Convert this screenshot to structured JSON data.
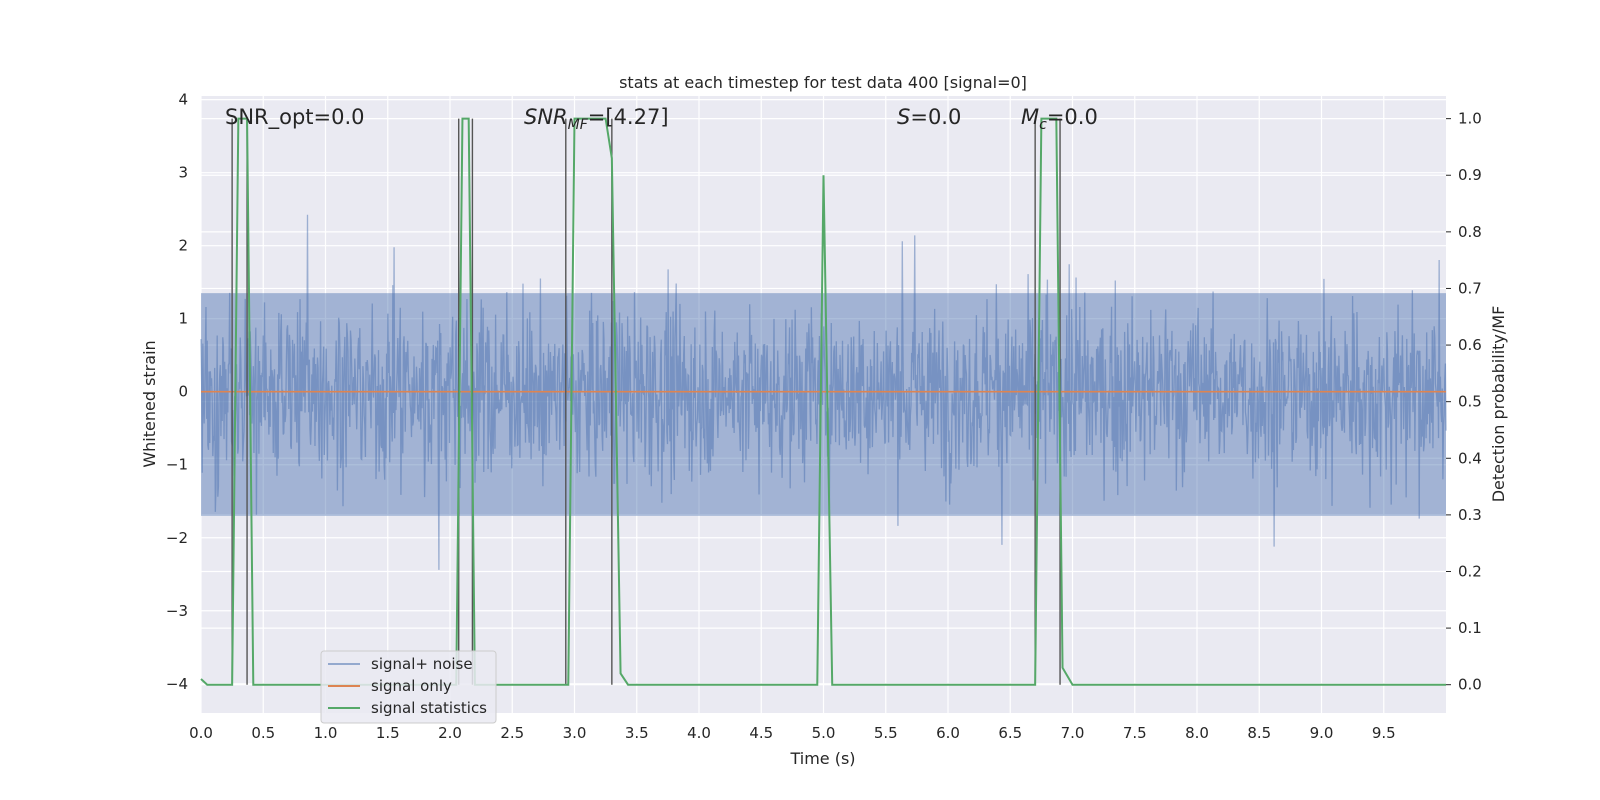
{
  "chart_data": {
    "type": "line",
    "title": "stats at each timestep for test data 400 [signal=0]",
    "xlabel": "Time (s)",
    "ylabel": "Whitened strain",
    "y2label": "Detection probability/MF",
    "xlim": [
      0.0,
      10.0
    ],
    "ylim": [
      -4.4,
      4.05
    ],
    "y2lim": [
      -0.05,
      1.04
    ],
    "x_ticks": [
      "0.0",
      "0.5",
      "1.0",
      "1.5",
      "2.0",
      "2.5",
      "3.0",
      "3.5",
      "4.0",
      "4.5",
      "5.0",
      "5.5",
      "6.0",
      "6.5",
      "7.0",
      "7.5",
      "8.0",
      "8.5",
      "9.0",
      "9.5"
    ],
    "y_ticks": [
      "−4",
      "−3",
      "−2",
      "−1",
      "0",
      "1",
      "2",
      "3",
      "4"
    ],
    "y2_ticks": [
      "0.0",
      "0.1",
      "0.2",
      "0.3",
      "0.4",
      "0.5",
      "0.6",
      "0.7",
      "0.8",
      "0.9",
      "1.0"
    ],
    "grid": true,
    "legend_position": "lower-left",
    "annotations": {
      "snr_opt": "SNR_opt=0.0",
      "snr_mf_main": "SNR",
      "snr_mf_sub": "MF",
      "snr_mf_value": "=[4.27]",
      "s_symbol": "S",
      "s_value": "=0.0",
      "mc_main": "M",
      "mc_sub": "c",
      "mc_value": "=0.0"
    },
    "colors": {
      "background": "#eaeaf2",
      "grid": "#ffffff",
      "noise": "#4c72b0",
      "signal_only": "#dd8452",
      "stats": "#55a868",
      "vlines": "#555555"
    },
    "series": [
      {
        "name": "signal+ noise",
        "axis": "left",
        "description_values": {
          "x_range": [
            0.0,
            10.0
          ],
          "typical_band": [
            -1.7,
            1.35
          ],
          "peak_max": 3.3,
          "peak_min": -4.1
        }
      },
      {
        "name": "signal only",
        "axis": "left",
        "x": [
          0.0,
          10.0
        ],
        "y": [
          0.0,
          0.0
        ]
      },
      {
        "name": "signal statistics",
        "axis": "right",
        "x": [
          0.0,
          0.05,
          0.25,
          0.3,
          0.37,
          0.42,
          2.05,
          2.1,
          2.15,
          2.2,
          2.25,
          2.95,
          3.0,
          3.05,
          3.1,
          3.25,
          3.3,
          3.37,
          3.43,
          4.95,
          5.0,
          5.07,
          6.7,
          6.75,
          6.8,
          6.87,
          6.92,
          7.0,
          10.0
        ],
        "y": [
          0.01,
          0.0,
          0.0,
          1.0,
          1.0,
          0.0,
          0.0,
          1.0,
          1.0,
          0.0,
          0.0,
          0.0,
          1.0,
          1.0,
          1.0,
          1.0,
          0.93,
          0.02,
          0.0,
          0.0,
          0.9,
          0.0,
          0.0,
          1.0,
          1.0,
          1.0,
          0.03,
          0.0,
          0.0
        ]
      }
    ],
    "vertical_markers": [
      {
        "x": 0.25,
        "y_top": 1.0,
        "y_bottom": 0.0
      },
      {
        "x": 0.37,
        "y_top": 1.0,
        "y_bottom": 0.0
      },
      {
        "x": 2.07,
        "y_top": 1.0,
        "y_bottom": 0.0
      },
      {
        "x": 2.18,
        "y_top": 1.0,
        "y_bottom": 0.0
      },
      {
        "x": 2.93,
        "y_top": 1.0,
        "y_bottom": 0.0
      },
      {
        "x": 3.3,
        "y_top": 1.0,
        "y_bottom": 0.0
      },
      {
        "x": 6.7,
        "y_top": 1.0,
        "y_bottom": 0.0
      },
      {
        "x": 6.9,
        "y_top": 1.0,
        "y_bottom": 0.0
      }
    ]
  }
}
